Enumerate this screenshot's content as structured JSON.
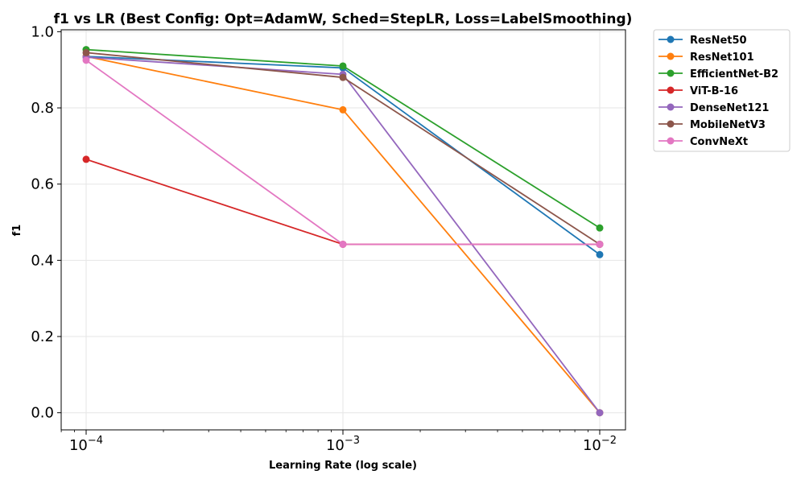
{
  "chart_data": {
    "type": "line",
    "title": "f1 vs LR (Best Config: Opt=AdamW, Sched=StepLR, Loss=LabelSmoothing)",
    "xlabel": "Learning Rate (log scale)",
    "ylabel": "f1",
    "x_scale": "log",
    "x": [
      0.0001,
      0.001,
      0.01
    ],
    "x_tick_labels": [
      {
        "base": "10",
        "exp": "−4"
      },
      {
        "base": "10",
        "exp": "−3"
      },
      {
        "base": "10",
        "exp": "−2"
      }
    ],
    "ylim": [
      -0.045,
      1.005
    ],
    "y_ticks": [
      0.0,
      0.2,
      0.4,
      0.6,
      0.8,
      1.0
    ],
    "y_tick_labels": [
      "0.0",
      "0.2",
      "0.4",
      "0.6",
      "0.8",
      "1.0"
    ],
    "grid": true,
    "legend_position": "outside-top-right",
    "series": [
      {
        "name": "ResNet50",
        "color": "#1f77b4",
        "values": [
          0.935,
          0.905,
          0.415
        ]
      },
      {
        "name": "ResNet101",
        "color": "#ff7f0e",
        "values": [
          0.935,
          0.795,
          0.0
        ]
      },
      {
        "name": "EfficientNet-B2",
        "color": "#2ca02c",
        "values": [
          0.953,
          0.91,
          0.485
        ]
      },
      {
        "name": "ViT-B-16",
        "color": "#d62728",
        "values": [
          0.665,
          0.442,
          0.442
        ]
      },
      {
        "name": "DenseNet121",
        "color": "#9467bd",
        "values": [
          0.933,
          0.888,
          0.0
        ]
      },
      {
        "name": "MobileNetV3",
        "color": "#8c564b",
        "values": [
          0.945,
          0.88,
          0.442
        ]
      },
      {
        "name": "ConvNeXt",
        "color": "#e377c2",
        "values": [
          0.925,
          0.442,
          0.442
        ]
      }
    ]
  }
}
